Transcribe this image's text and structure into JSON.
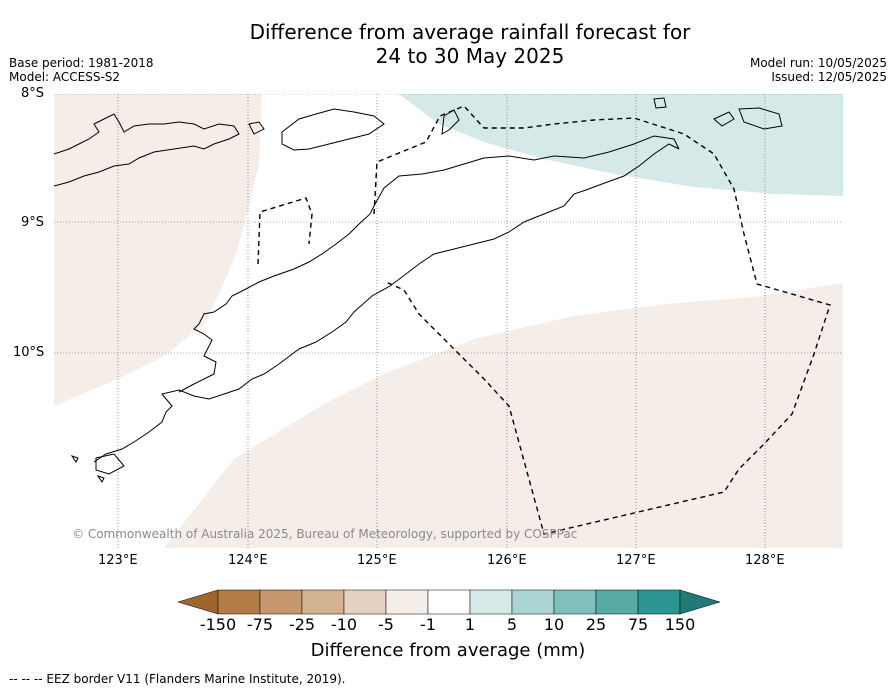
{
  "title_line1": "Difference from average rainfall forecast for",
  "title_line2": "24 to 30 May 2025",
  "meta": {
    "base_period": "Base period: 1981-2018",
    "model": "Model: ACCESS-S2",
    "model_run": "Model run: 10/05/2025",
    "issued": "Issued: 12/05/2025"
  },
  "map": {
    "lat_labels": [
      "8°S",
      "9°S",
      "10°S"
    ],
    "lon_labels": [
      "123°E",
      "124°E",
      "125°E",
      "126°E",
      "127°E",
      "128°E"
    ],
    "credit": "© Commonwealth of Australia 2025, Bureau of Meteorology, supported by COSPPac",
    "colors": {
      "dry_light": "#f4ede8",
      "wet_light": "#d5eae8",
      "coast": "#000000"
    }
  },
  "legend": {
    "tick_labels": [
      "-150",
      "-75",
      "-25",
      "-10",
      "-5",
      "-1",
      "1",
      "5",
      "10",
      "25",
      "75",
      "150"
    ],
    "colors": [
      "#a0652d",
      "#b37b45",
      "#c4976c",
      "#d4b393",
      "#e5d2c1",
      "#f4ede8",
      "#ffffff",
      "#d5eae8",
      "#aad5d2",
      "#80c0bc",
      "#58aaa6",
      "#2d9591",
      "#217a76"
    ],
    "label": "Difference from average (mm)"
  },
  "footnote": "--  --  -- EEZ border V11 (Flanders Marine Institute, 2019)."
}
